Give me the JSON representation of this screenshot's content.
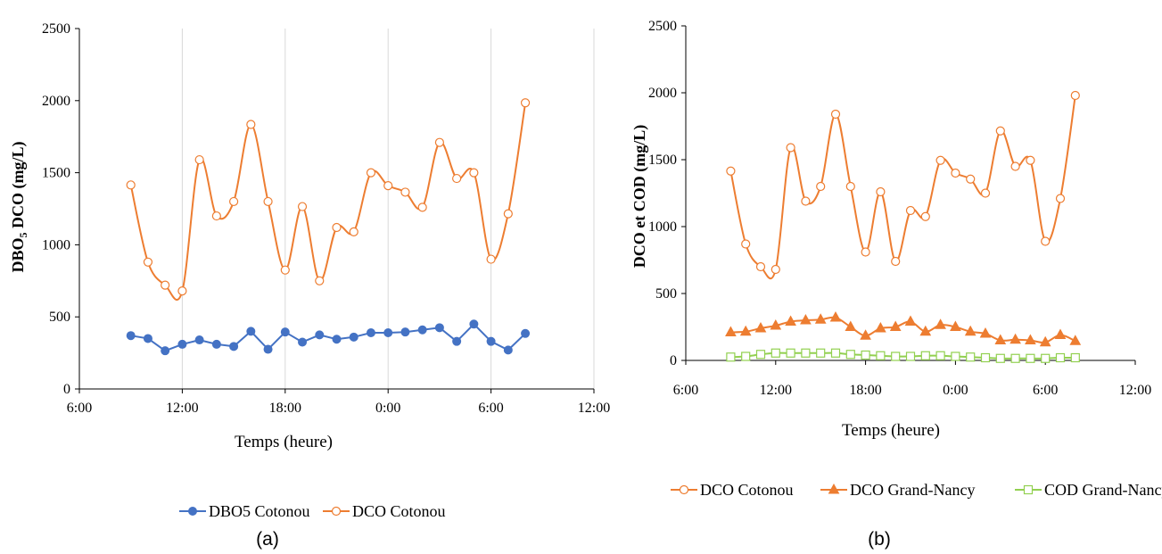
{
  "colors": {
    "orange": "#ED7D31",
    "blue": "#4472C4",
    "green": "#92D050",
    "grid": "#D9D9D9",
    "axis": "#000000"
  },
  "chart_data": [
    {
      "type": "line",
      "panel_label": "(a)",
      "xlabel": "Temps (heure)",
      "ylabel_main": "DBO",
      "ylabel_sub": "5",
      "ylabel_rest": "  DCO (mg/L)",
      "ylim": [
        0,
        2500
      ],
      "yticks": [
        0,
        500,
        1000,
        1500,
        2000,
        2500
      ],
      "xticks": [
        "6:00",
        "12:00",
        "18:00",
        "0:00",
        "6:00",
        "12:00"
      ],
      "x_unit": "hours from 6:00",
      "x_range_hours": [
        0,
        30
      ],
      "grid": "vertical",
      "legend_position": "bottom",
      "x": [
        3,
        4,
        5,
        6,
        7,
        8,
        9,
        10,
        11,
        12,
        13,
        14,
        15,
        16,
        17,
        18,
        19,
        20,
        21,
        22,
        23,
        24,
        25,
        26
      ],
      "series": [
        {
          "name": "DBO5 Cotonou",
          "color": "#4472C4",
          "marker": "filled-circle",
          "smooth": false,
          "values": [
            370,
            350,
            265,
            310,
            340,
            310,
            295,
            400,
            275,
            395,
            325,
            375,
            345,
            360,
            390,
            390,
            395,
            410,
            425,
            330,
            450,
            330,
            270,
            385
          ]
        },
        {
          "name": "DCO Cotonou",
          "color": "#ED7D31",
          "marker": "open-circle",
          "smooth": true,
          "values": [
            1415,
            880,
            720,
            680,
            1590,
            1200,
            1300,
            1835,
            1300,
            825,
            1265,
            750,
            1120,
            1090,
            1500,
            1410,
            1365,
            1260,
            1710,
            1460,
            1500,
            900,
            1215,
            1985
          ]
        }
      ]
    },
    {
      "type": "line",
      "panel_label": "(b)",
      "xlabel": "Temps (heure)",
      "ylabel": "DCO et COD (mg/L)",
      "ylim": [
        0,
        2500
      ],
      "yticks": [
        0,
        500,
        1000,
        1500,
        2000,
        2500
      ],
      "xticks": [
        "6:00",
        "12:00",
        "18:00",
        "0:00",
        "6:00",
        "12:00"
      ],
      "x_unit": "hours from 6:00",
      "x_range_hours": [
        0,
        30
      ],
      "grid": "none",
      "legend_position": "bottom",
      "x": [
        3,
        4,
        5,
        6,
        7,
        8,
        9,
        10,
        11,
        12,
        13,
        14,
        15,
        16,
        17,
        18,
        19,
        20,
        21,
        22,
        23,
        24,
        25,
        26
      ],
      "series": [
        {
          "name": "DCO Cotonou",
          "color": "#ED7D31",
          "marker": "open-circle",
          "smooth": true,
          "values": [
            1415,
            870,
            700,
            680,
            1590,
            1190,
            1300,
            1840,
            1300,
            810,
            1260,
            740,
            1120,
            1075,
            1495,
            1400,
            1355,
            1250,
            1715,
            1450,
            1495,
            890,
            1210,
            1980
          ]
        },
        {
          "name": "DCO Grand-Nancy",
          "color": "#ED7D31",
          "marker": "filled-triangle",
          "smooth": true,
          "values": [
            210,
            215,
            240,
            260,
            290,
            300,
            305,
            320,
            250,
            185,
            240,
            250,
            290,
            215,
            265,
            250,
            215,
            200,
            150,
            155,
            150,
            135,
            190,
            145
          ]
        },
        {
          "name": "COD Grand-Nancy",
          "color": "#92D050",
          "marker": "open-square",
          "smooth": true,
          "values": [
            25,
            30,
            45,
            55,
            55,
            55,
            55,
            55,
            45,
            40,
            35,
            30,
            30,
            35,
            35,
            30,
            25,
            20,
            15,
            15,
            15,
            15,
            20,
            20
          ]
        }
      ]
    }
  ]
}
